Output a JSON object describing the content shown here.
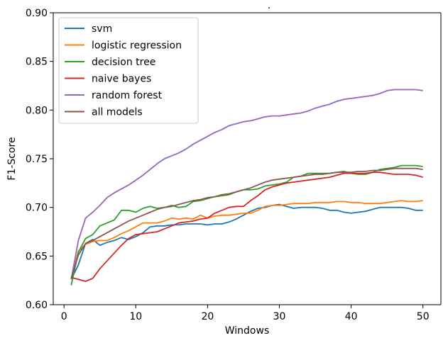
{
  "chart_data": {
    "type": "line",
    "title": ".",
    "xlabel": "Windows",
    "ylabel": "F1-Score",
    "xlim": [
      -1.5,
      52.5
    ],
    "ylim": [
      0.6,
      0.9
    ],
    "xticks": [
      0,
      10,
      20,
      30,
      40,
      50
    ],
    "yticks": [
      0.6,
      0.65,
      0.7,
      0.75,
      0.8,
      0.85,
      0.9
    ],
    "ytick_labels": [
      "0.60",
      "0.65",
      "0.70",
      "0.75",
      "0.80",
      "0.85",
      "0.90"
    ],
    "grid": false,
    "legend_position": "top-left",
    "x": [
      1,
      2,
      3,
      4,
      5,
      6,
      7,
      8,
      9,
      10,
      11,
      12,
      13,
      14,
      15,
      16,
      17,
      18,
      19,
      20,
      21,
      22,
      23,
      24,
      25,
      26,
      27,
      28,
      29,
      30,
      31,
      32,
      33,
      34,
      35,
      36,
      37,
      38,
      39,
      40,
      41,
      42,
      43,
      44,
      45,
      46,
      47,
      48,
      49,
      50
    ],
    "series": [
      {
        "name": "svm",
        "color": "#1f77b4",
        "values": [
          0.626,
          0.641,
          0.663,
          0.667,
          0.661,
          0.664,
          0.666,
          0.669,
          0.667,
          0.67,
          0.674,
          0.68,
          0.681,
          0.681,
          0.682,
          0.682,
          0.683,
          0.683,
          0.683,
          0.682,
          0.683,
          0.683,
          0.685,
          0.688,
          0.692,
          0.696,
          0.699,
          0.7,
          0.702,
          0.703,
          0.701,
          0.699,
          0.7,
          0.7,
          0.7,
          0.699,
          0.697,
          0.697,
          0.695,
          0.694,
          0.695,
          0.696,
          0.698,
          0.7,
          0.7,
          0.7,
          0.7,
          0.699,
          0.697,
          0.697
        ]
      },
      {
        "name": "logistic regression",
        "color": "#ff7f0e",
        "values": [
          0.627,
          0.655,
          0.662,
          0.665,
          0.666,
          0.666,
          0.669,
          0.673,
          0.676,
          0.68,
          0.684,
          0.684,
          0.684,
          0.686,
          0.689,
          0.688,
          0.689,
          0.688,
          0.692,
          0.689,
          0.691,
          0.692,
          0.692,
          0.693,
          0.694,
          0.694,
          0.697,
          0.701,
          0.702,
          0.702,
          0.703,
          0.704,
          0.704,
          0.704,
          0.705,
          0.705,
          0.705,
          0.706,
          0.706,
          0.705,
          0.705,
          0.704,
          0.704,
          0.704,
          0.705,
          0.706,
          0.707,
          0.706,
          0.706,
          0.707
        ]
      },
      {
        "name": "decision tree",
        "color": "#2ca02c",
        "values": [
          0.62,
          0.654,
          0.668,
          0.672,
          0.681,
          0.684,
          0.687,
          0.697,
          0.697,
          0.695,
          0.699,
          0.701,
          0.699,
          0.7,
          0.702,
          0.7,
          0.701,
          0.706,
          0.707,
          0.709,
          0.711,
          0.712,
          0.713,
          0.716,
          0.718,
          0.718,
          0.719,
          0.722,
          0.723,
          0.724,
          0.726,
          0.731,
          0.732,
          0.735,
          0.735,
          0.735,
          0.735,
          0.736,
          0.737,
          0.735,
          0.734,
          0.734,
          0.736,
          0.739,
          0.74,
          0.741,
          0.743,
          0.743,
          0.743,
          0.742
        ]
      },
      {
        "name": "naive bayes",
        "color": "#d62728",
        "values": [
          0.628,
          0.626,
          0.624,
          0.627,
          0.637,
          0.645,
          0.653,
          0.661,
          0.668,
          0.672,
          0.673,
          0.674,
          0.675,
          0.678,
          0.681,
          0.684,
          0.685,
          0.686,
          0.688,
          0.689,
          0.694,
          0.697,
          0.7,
          0.701,
          0.701,
          0.707,
          0.712,
          0.718,
          0.721,
          0.723,
          0.725,
          0.726,
          0.727,
          0.728,
          0.729,
          0.73,
          0.731,
          0.733,
          0.735,
          0.735,
          0.735,
          0.735,
          0.736,
          0.736,
          0.735,
          0.734,
          0.734,
          0.734,
          0.733,
          0.731
        ]
      },
      {
        "name": "random forest",
        "color": "#9467bd",
        "values": [
          0.626,
          0.666,
          0.689,
          0.695,
          0.702,
          0.71,
          0.715,
          0.719,
          0.723,
          0.728,
          0.733,
          0.739,
          0.745,
          0.75,
          0.753,
          0.756,
          0.76,
          0.765,
          0.769,
          0.773,
          0.777,
          0.78,
          0.784,
          0.786,
          0.788,
          0.789,
          0.791,
          0.793,
          0.794,
          0.794,
          0.795,
          0.796,
          0.797,
          0.799,
          0.802,
          0.804,
          0.806,
          0.809,
          0.811,
          0.812,
          0.813,
          0.814,
          0.815,
          0.817,
          0.82,
          0.821,
          0.821,
          0.821,
          0.821,
          0.82
        ]
      },
      {
        "name": "all models",
        "color": "#8c564b",
        "values": [
          0.627,
          0.651,
          0.663,
          0.666,
          0.67,
          0.674,
          0.678,
          0.682,
          0.686,
          0.689,
          0.692,
          0.695,
          0.698,
          0.7,
          0.701,
          0.703,
          0.705,
          0.707,
          0.708,
          0.71,
          0.711,
          0.713,
          0.714,
          0.716,
          0.718,
          0.72,
          0.723,
          0.726,
          0.728,
          0.729,
          0.73,
          0.731,
          0.732,
          0.733,
          0.734,
          0.734,
          0.735,
          0.736,
          0.736,
          0.736,
          0.737,
          0.737,
          0.738,
          0.738,
          0.739,
          0.74,
          0.74,
          0.74,
          0.74,
          0.739
        ]
      }
    ]
  }
}
